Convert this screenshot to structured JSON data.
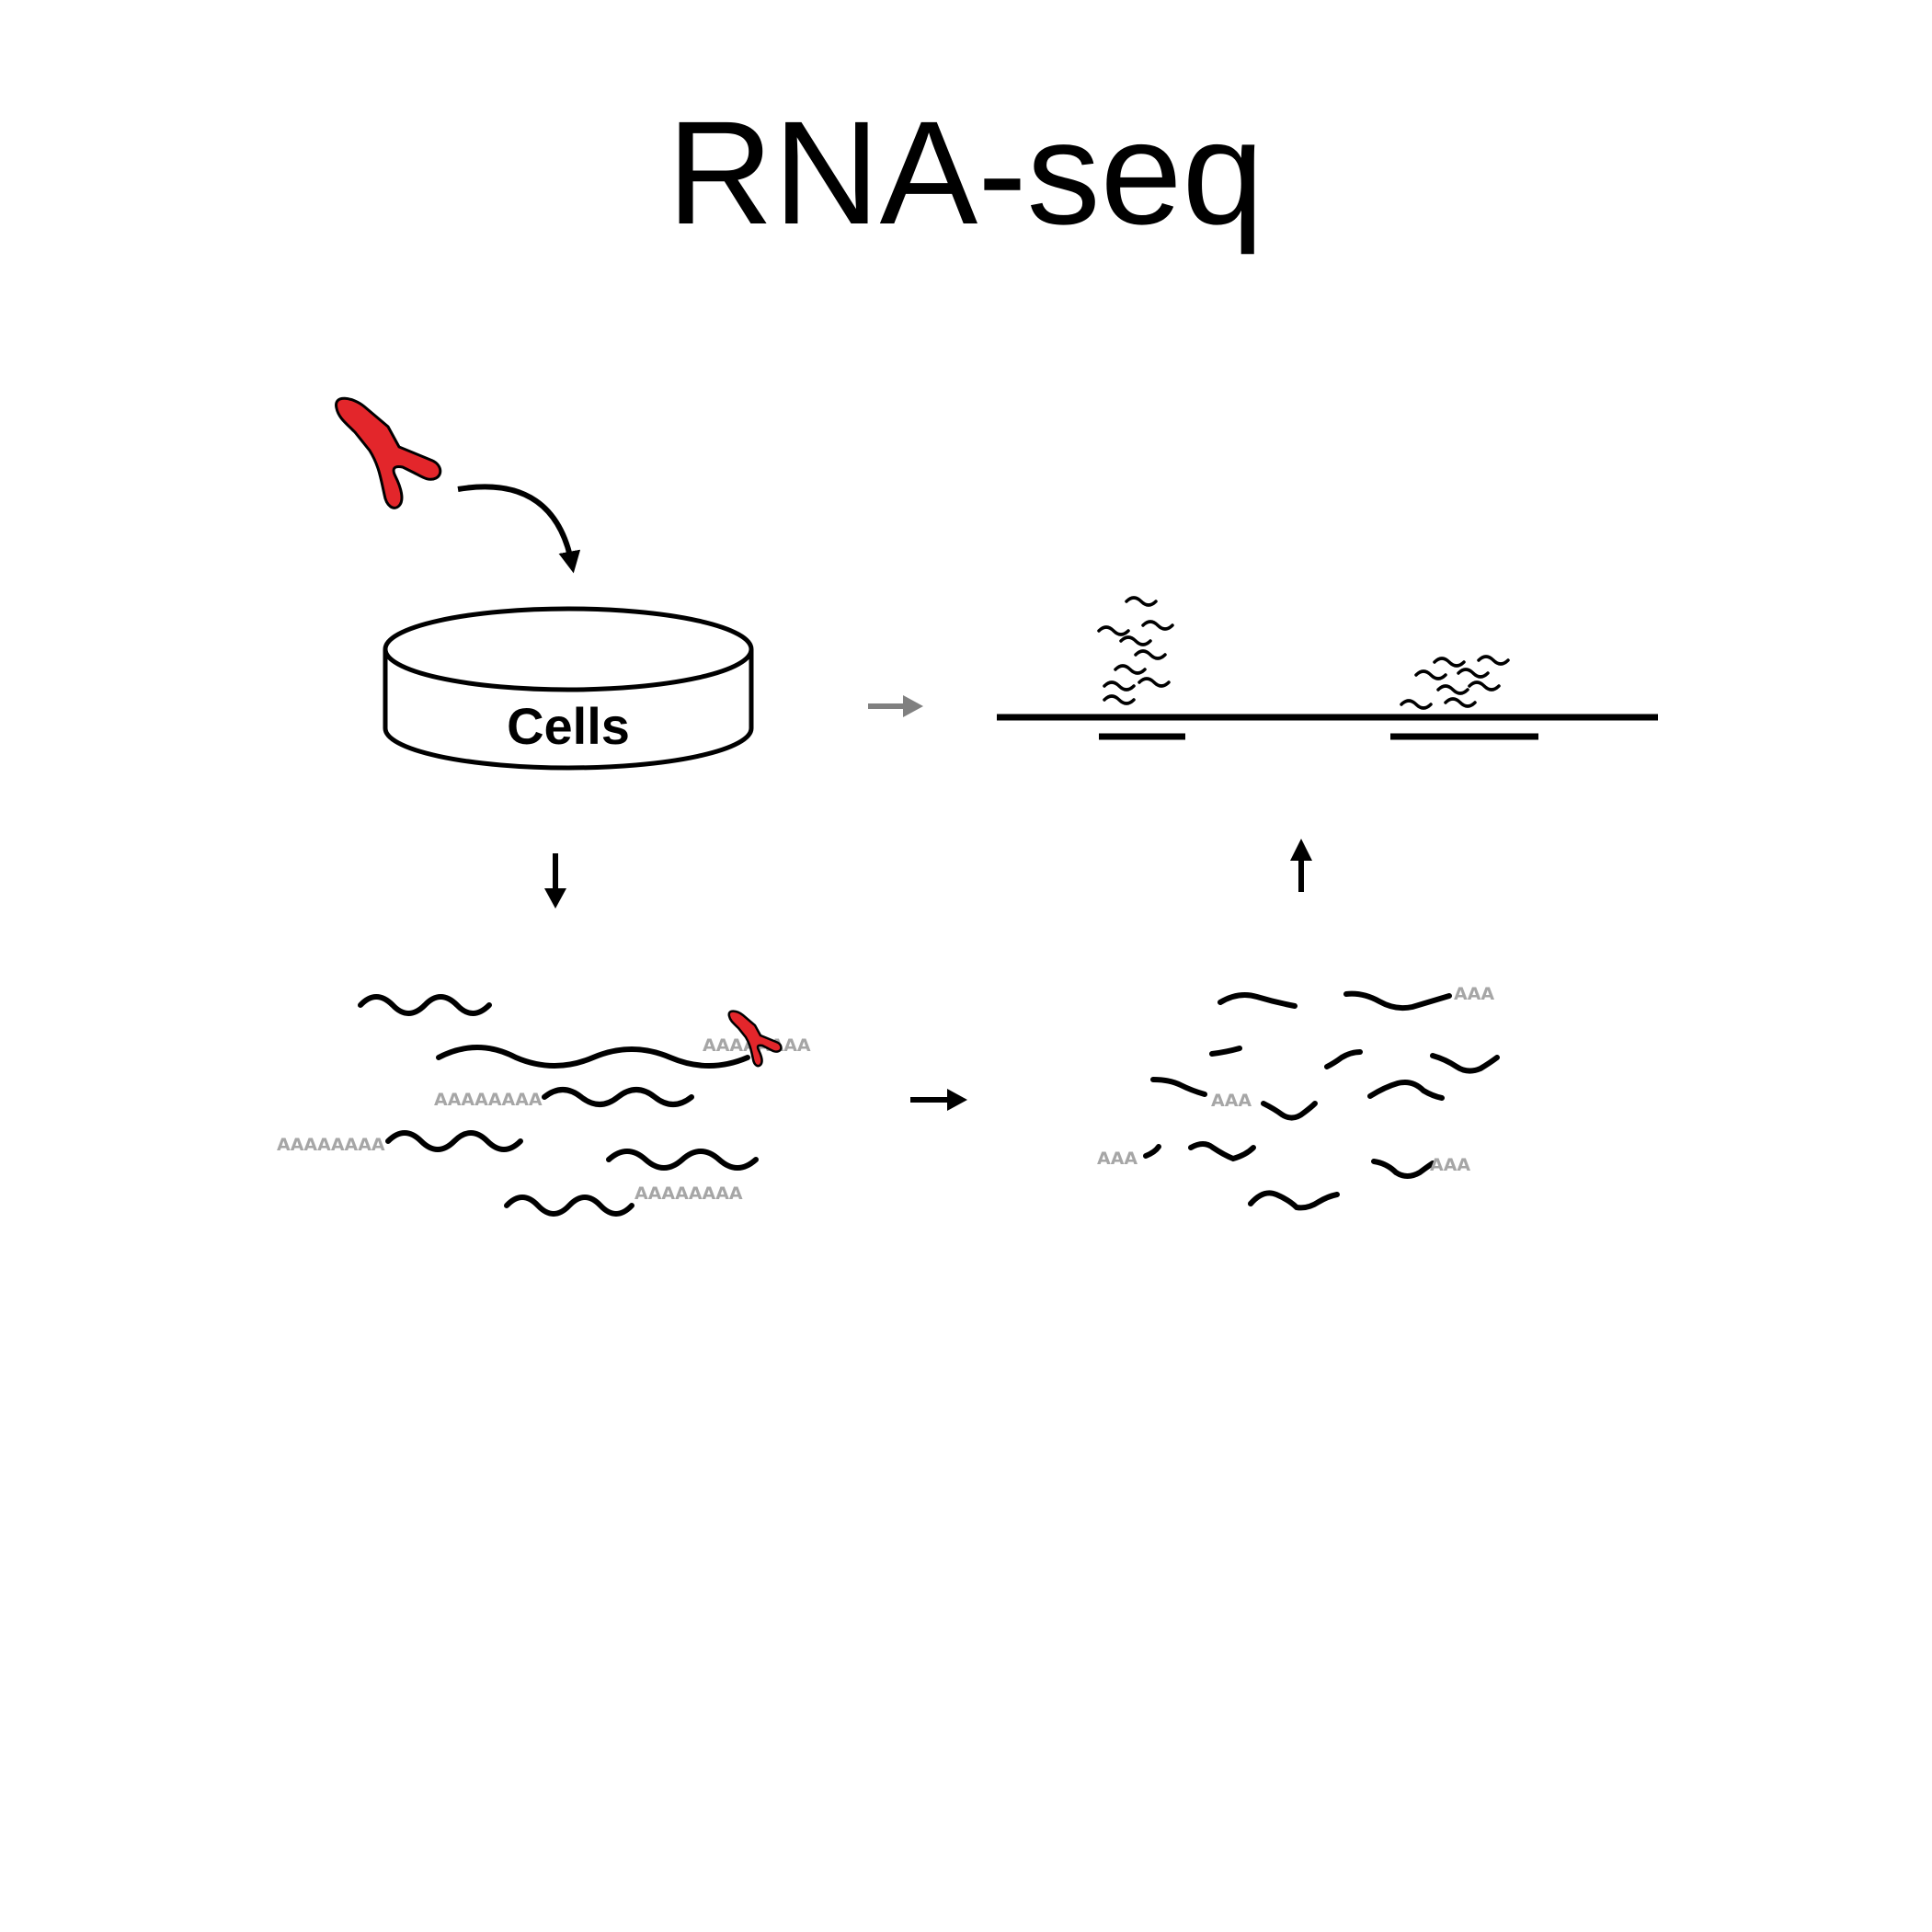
{
  "title": "RNA-seq",
  "dish": {
    "label": "Cells"
  },
  "polya": {
    "long": "AAAAAAAA",
    "short": "AAA"
  },
  "colors": {
    "antibody": "#e3262b",
    "gray_arrow": "#808080",
    "polya_text": "#a6a6a6"
  },
  "icons": [
    "antibody-icon",
    "cell-dish-icon",
    "arrow-icon"
  ]
}
